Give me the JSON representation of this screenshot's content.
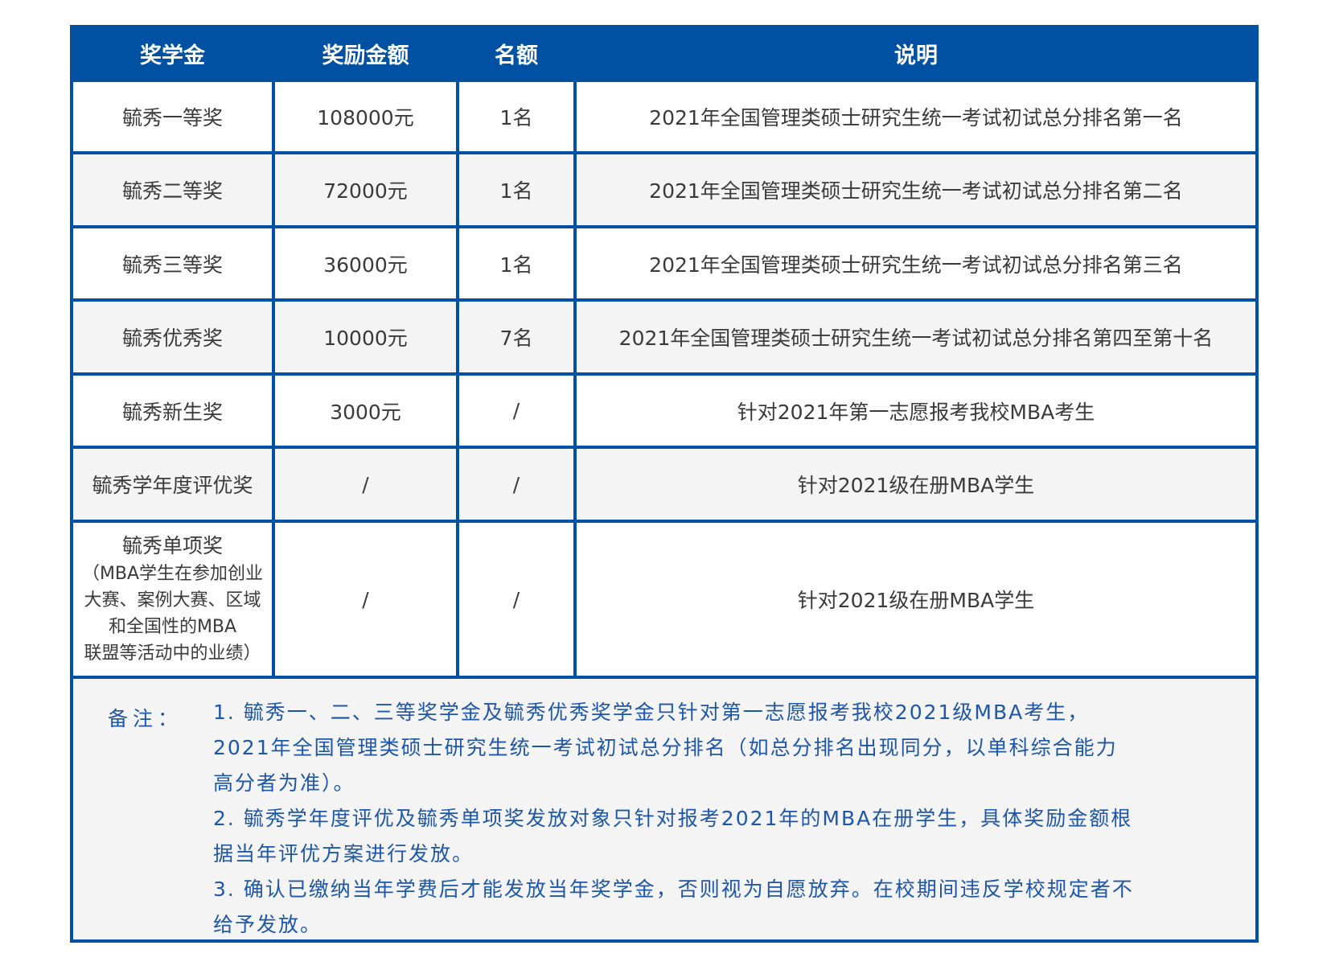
{
  "header": {
    "col1": "奖学金",
    "col2": "奖励金额",
    "col3": "名额",
    "col4": "说明"
  },
  "rows": [
    {
      "name": "毓秀一等奖",
      "amount": "108000元",
      "quota": "1名",
      "desc": "2021年全国管理类硕士研究生统一考试初试总分排名第一名"
    },
    {
      "name": "毓秀二等奖",
      "amount": "72000元",
      "quota": "1名",
      "desc": "2021年全国管理类硕士研究生统一考试初试总分排名第二名"
    },
    {
      "name": "毓秀三等奖",
      "amount": "36000元",
      "quota": "1名",
      "desc": "2021年全国管理类硕士研究生统一考试初试总分排名第三名"
    },
    {
      "name": "毓秀优秀奖",
      "amount": "10000元",
      "quota": "7名",
      "desc": "2021年全国管理类硕士研究生统一考试初试总分排名第四至第十名"
    },
    {
      "name": "毓秀新生奖",
      "amount": "3000元",
      "quota": "/",
      "desc": "针对2021年第一志愿报考我校MBA考生"
    },
    {
      "name": "毓秀学年度评优奖",
      "amount": "/",
      "quota": "/",
      "desc": "针对2021级在册MBA学生"
    },
    {
      "name": "毓秀单项奖",
      "name_note": [
        "（MBA学生在参加创业",
        "大赛、案例大赛、区域",
        "和全国性的MBA",
        "联盟等活动中的业绩）"
      ],
      "amount": "/",
      "quota": "/",
      "desc": "针对2021级在册MBA学生"
    }
  ],
  "remarks": {
    "label": "备注：",
    "lines": [
      "1. 毓秀一、二、三等奖学金及毓秀优秀奖学金只针对第一志愿报考我校2021级MBA考生，",
      "2021年全国管理类硕士研究生统一考试初试总分排名（如总分排名出现同分，以单科综合能力",
      "高分者为准）。",
      "2. 毓秀学年度评优及毓秀单项奖发放对象只针对报考2021年的MBA在册学生，具体奖励金额根",
      "据当年评优方案进行发放。",
      "3. 确认已缴纳当年学费后才能发放当年奖学金，否则视为自愿放弃。在校期间违反学校规定者不",
      "给予发放。"
    ]
  },
  "colors": {
    "border": "#0051a3",
    "header_bg": "#0051a3",
    "alt_row": "#f4f4f4",
    "remark_text": "#1e56a8"
  }
}
